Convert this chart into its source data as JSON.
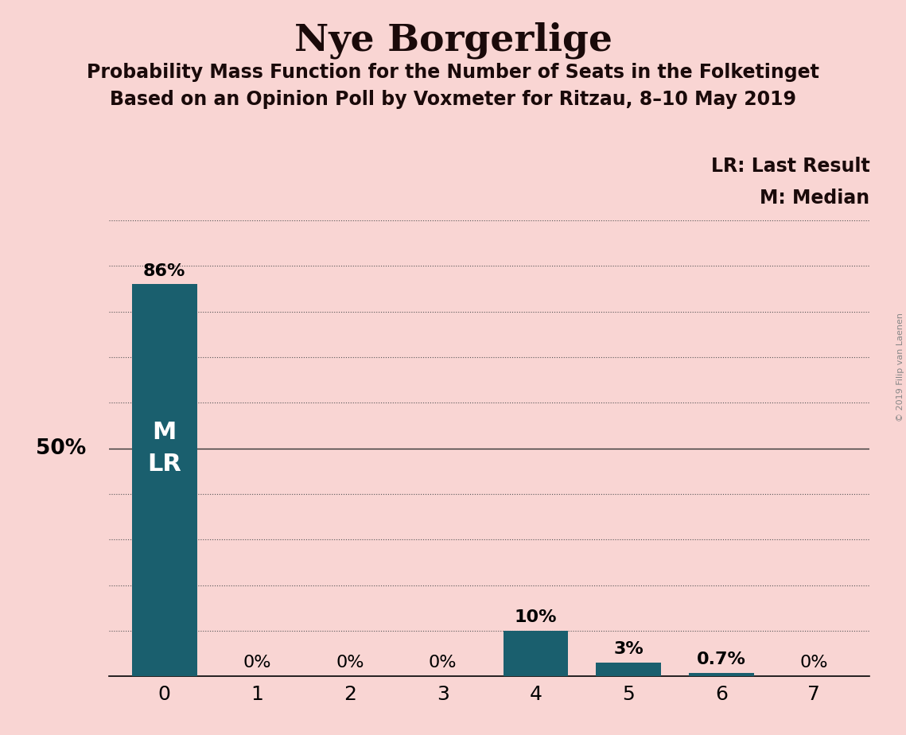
{
  "title": "Nye Borgerlige",
  "subtitle1": "Probability Mass Function for the Number of Seats in the Folketinget",
  "subtitle2": "Based on an Opinion Poll by Voxmeter for Ritzau, 8–10 May 2019",
  "categories": [
    0,
    1,
    2,
    3,
    4,
    5,
    6,
    7
  ],
  "values": [
    0.86,
    0.0,
    0.0,
    0.0,
    0.1,
    0.03,
    0.007,
    0.0
  ],
  "bar_labels": [
    "86%",
    "0%",
    "0%",
    "0%",
    "10%",
    "3%",
    "0.7%",
    "0%"
  ],
  "bar_color": "#1a5f6e",
  "background_color": "#f9d5d3",
  "legend_lr": "LR: Last Result",
  "legend_m": "M: Median",
  "watermark": "© 2019 Filip van Laenen",
  "ylim": [
    0,
    1.0
  ],
  "yticks": [
    0.0,
    0.1,
    0.2,
    0.3,
    0.4,
    0.5,
    0.6,
    0.7,
    0.8,
    0.9,
    1.0
  ],
  "title_fontsize": 34,
  "subtitle_fontsize": 17,
  "bar_label_fontsize": 16,
  "tick_fontsize": 18,
  "legend_fontsize": 17,
  "ylabel_fontsize": 19,
  "ml_fontsize": 22
}
